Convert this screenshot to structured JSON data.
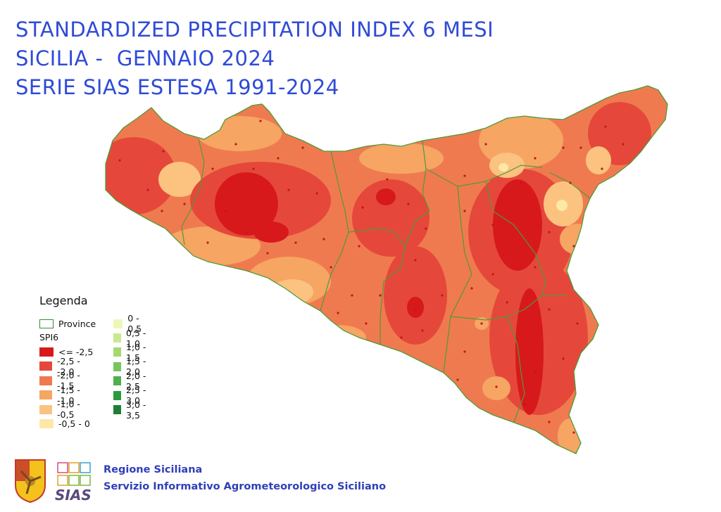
{
  "title": {
    "line1": "STANDARDIZED PRECIPITATION INDEX 6 MESI",
    "line2": "SICILIA -  GENNAIO 2024",
    "line3": "SERIE SIAS ESTESA 1991-2024"
  },
  "legend": {
    "title": "Legenda",
    "province_label": "Province",
    "spi_label": "SPI6",
    "classes_dry": [
      {
        "label": "<= -2,5",
        "color": "#d7191c"
      },
      {
        "label": "-2,5 - -2,0",
        "color": "#e5483a"
      },
      {
        "label": "-2,0 - -1,5",
        "color": "#f07a4f"
      },
      {
        "label": "-1,5 - -1,0",
        "color": "#f6a563"
      },
      {
        "label": "-1,0 - -0,5",
        "color": "#fbc37f"
      },
      {
        "label": "-0,5 - 0",
        "color": "#fee8a8"
      }
    ],
    "classes_wet": [
      {
        "label": "0 - 0,5",
        "color": "#eef7b8"
      },
      {
        "label": "0,5 - 1,0",
        "color": "#c9e98e"
      },
      {
        "label": "1,0 - 1,5",
        "color": "#a3d96f"
      },
      {
        "label": "1,5 - 2,0",
        "color": "#78c45e"
      },
      {
        "label": "2,0 - 2,5",
        "color": "#4fae4e"
      },
      {
        "label": "2,5 - 3,0",
        "color": "#2a9a3e"
      },
      {
        "label": "3,0 - 3,5",
        "color": "#1d7f36"
      }
    ]
  },
  "footer": {
    "line1": "Regione Siciliana",
    "line2": "Servizio Informativo Agrometeorologico Siciliano",
    "logo2_text": "SIAS"
  },
  "colors": {
    "title": "#2f4bd6",
    "province_border": "#4f9a3a",
    "station": "#c01818"
  }
}
